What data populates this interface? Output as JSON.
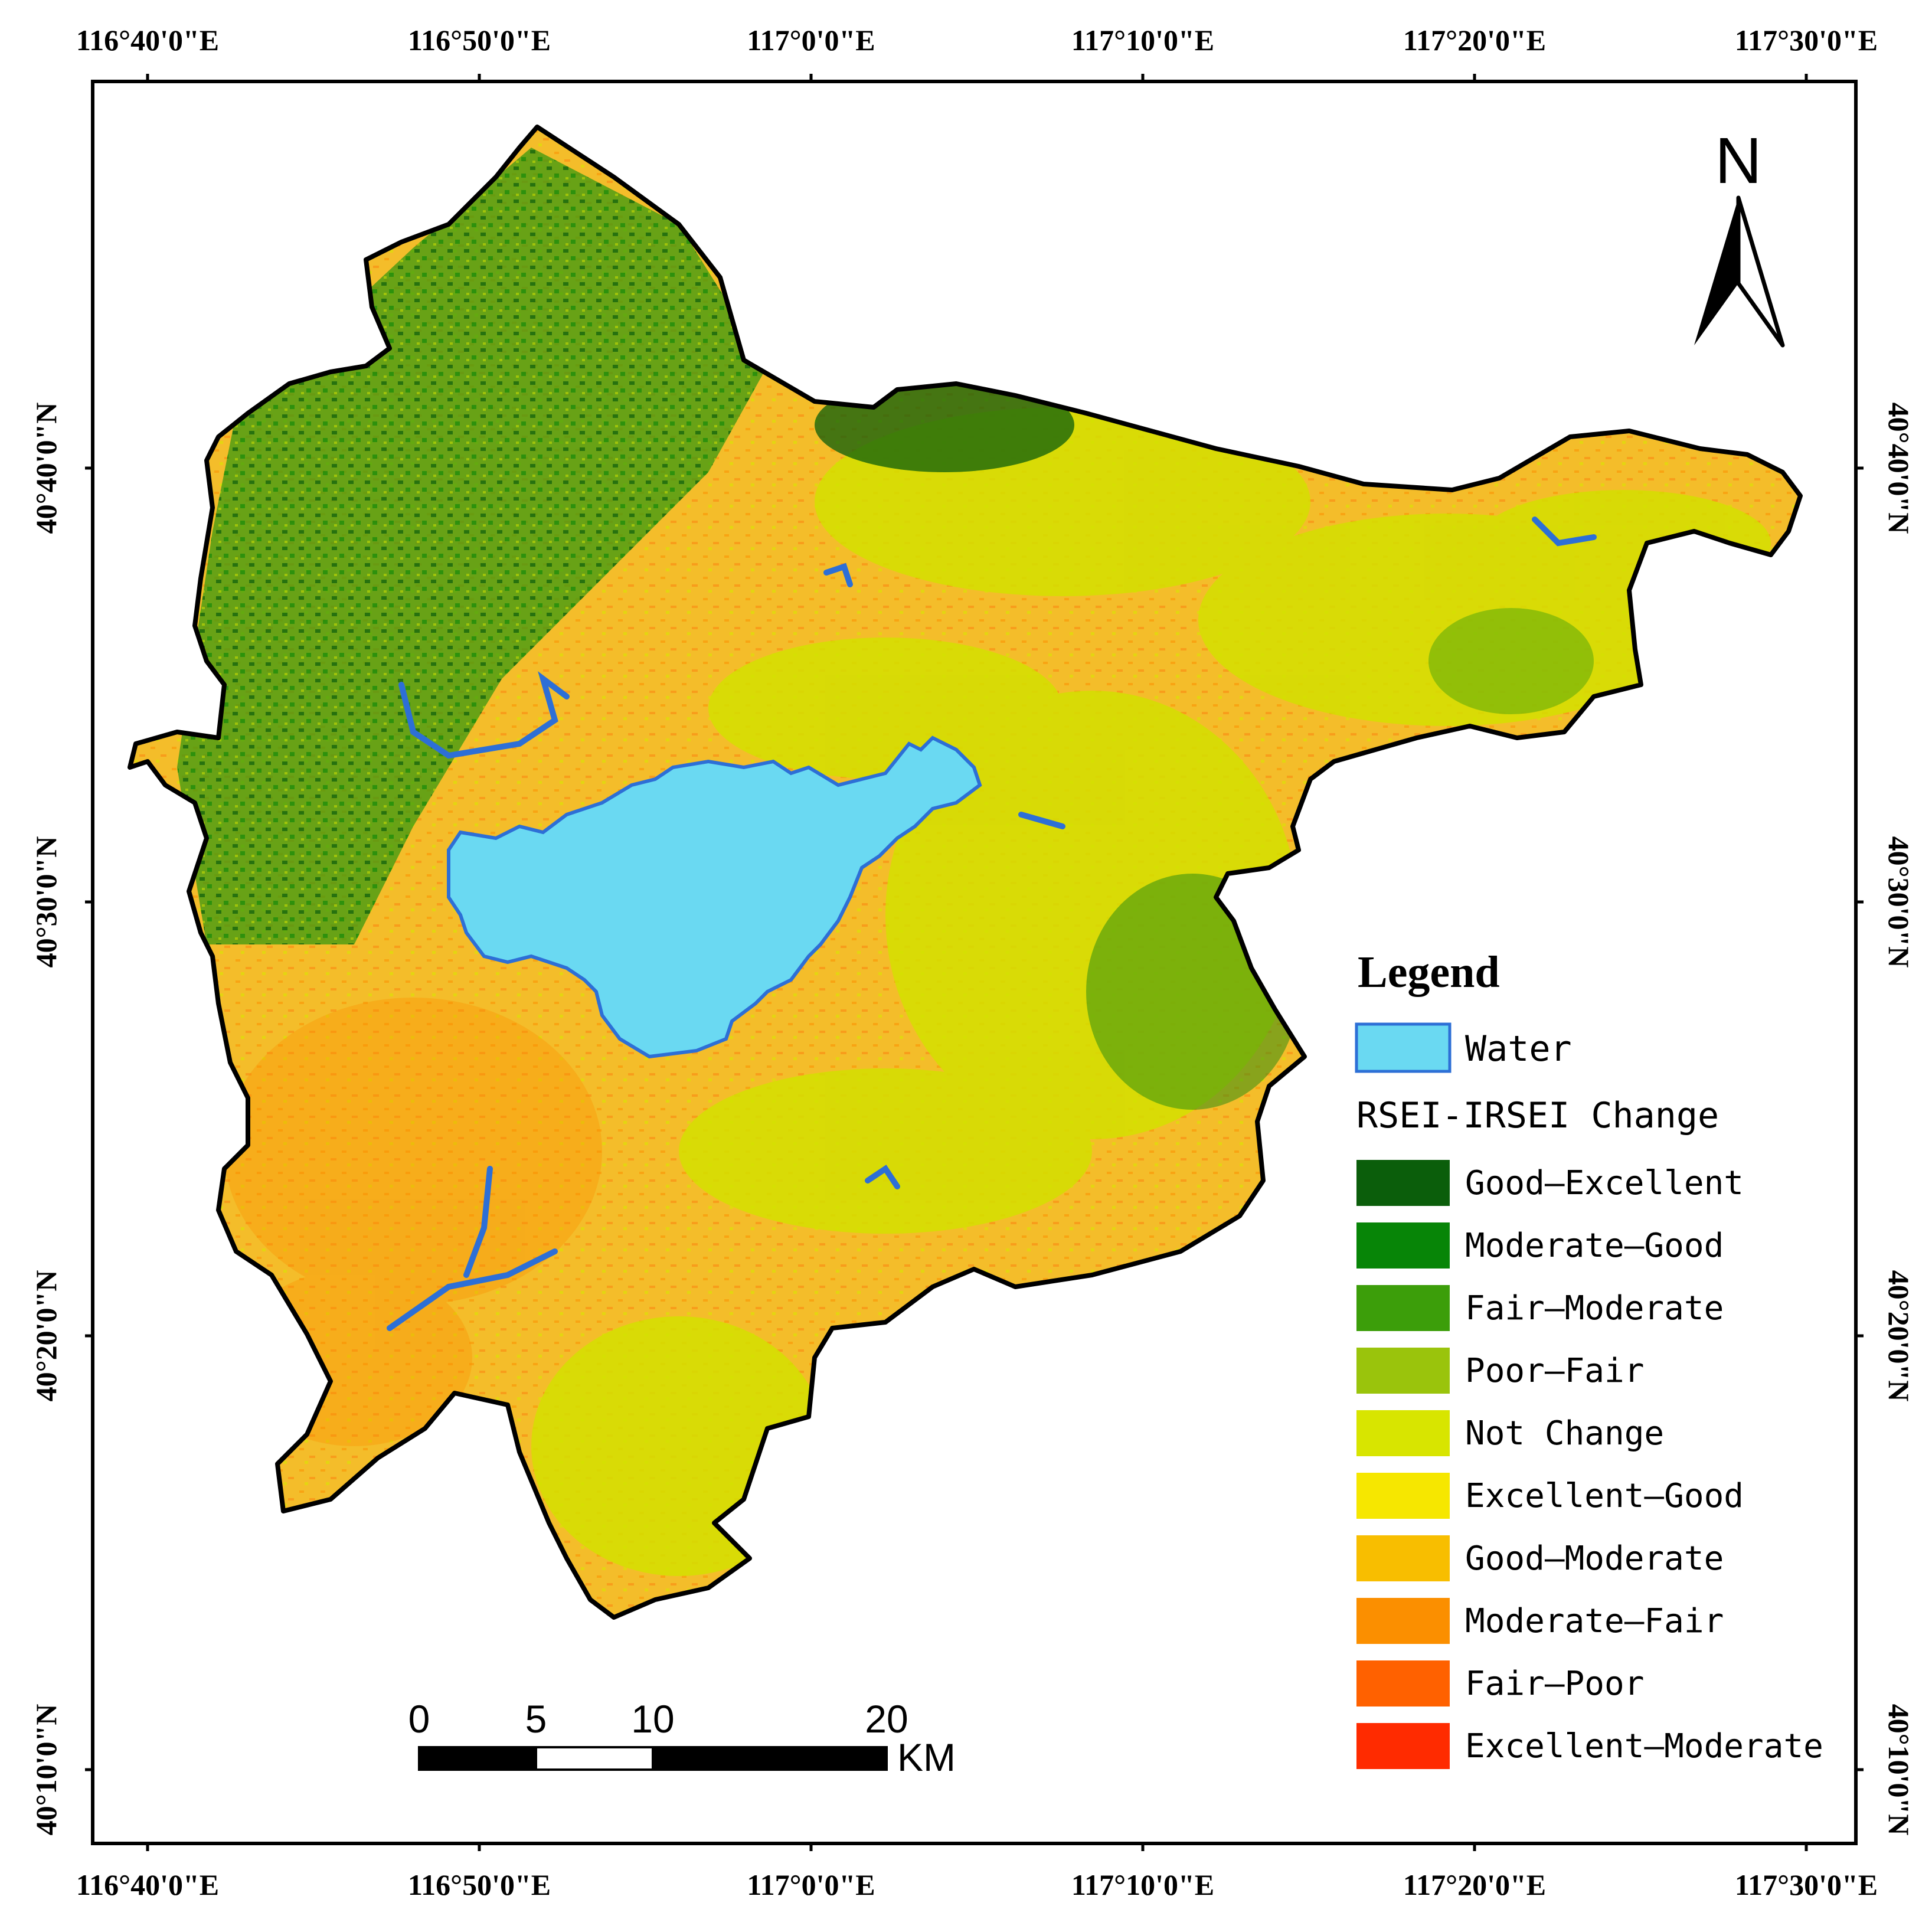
{
  "top_lon_labels": [
    "116°40'0\"E",
    "116°50'0\"E",
    "117°0'0\"E",
    "117°10'0\"E",
    "117°20'0\"E",
    "117°30'0\"E"
  ],
  "bottom_lon_labels": [
    "116°40'0\"E",
    "116°50'0\"E",
    "117°0'0\"E",
    "117°10'0\"E",
    "117°20'0\"E",
    "117°30'0\"E"
  ],
  "left_lat_labels": [
    "40°40'0\"N",
    "40°30'0\"N",
    "40°20'0\"N",
    "40°10'0\"N"
  ],
  "right_lat_labels": [
    "40°40'0\"N",
    "40°30'0\"N",
    "40°20'0\"N",
    "40°10'0\"N"
  ],
  "north_arrow": {
    "label": "N",
    "icon": "north-arrow-icon"
  },
  "scale_bar": {
    "ticks": [
      "0",
      "5",
      "10",
      "20"
    ],
    "unit": "KM"
  },
  "legend": {
    "title": "Legend",
    "water": {
      "label": "Water",
      "color": "#6ad9f2",
      "border": "#2d6fd6"
    },
    "change_title": "RSEI-IRSEI Change",
    "classes": [
      {
        "label": "Good—Excellent",
        "color": "#0b5e0b"
      },
      {
        "label": "Moderate—Good",
        "color": "#078507"
      },
      {
        "label": "Fair—Moderate",
        "color": "#3c9e0a"
      },
      {
        "label": "Poor—Fair",
        "color": "#9ac40c"
      },
      {
        "label": "Not Change",
        "color": "#d8e500"
      },
      {
        "label": "Excellent—Good",
        "color": "#f6e700"
      },
      {
        "label": "Good—Moderate",
        "color": "#f8be00"
      },
      {
        "label": "Moderate—Fair",
        "color": "#fb8f00"
      },
      {
        "label": "Fair—Poor",
        "color": "#ff6100"
      },
      {
        "label": "Excellent—Moderate",
        "color": "#ff2b00"
      }
    ]
  }
}
